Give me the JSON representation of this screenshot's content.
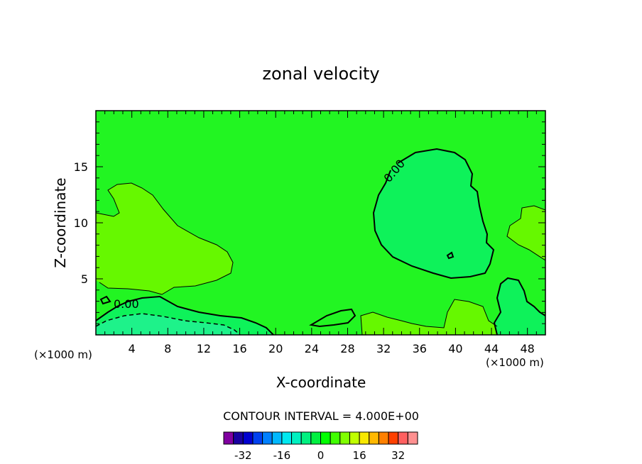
{
  "chart_data": {
    "type": "contour",
    "title": "zonal velocity",
    "xlabel": "X-coordinate",
    "ylabel": "Z-coordinate",
    "x_unit_left": "(×1000 m)",
    "x_unit_right": "(×1000 m)",
    "xlim": [
      0,
      50
    ],
    "ylim": [
      0,
      20
    ],
    "x_ticks": [
      4,
      8,
      12,
      16,
      20,
      24,
      28,
      32,
      36,
      40,
      44,
      48
    ],
    "y_ticks": [
      5,
      10,
      15
    ],
    "contour_interval_text": "CONTOUR INTERVAL = 4.000E+00",
    "contour_labels": [
      "0.00",
      "0.00"
    ],
    "colorbar": {
      "levels": [
        -36,
        -32,
        -28,
        -24,
        -20,
        -16,
        -12,
        -8,
        -4,
        0,
        4,
        8,
        12,
        16,
        20,
        24,
        28,
        32,
        36
      ],
      "colors": [
        "#8000a0",
        "#1800a0",
        "#0000d0",
        "#0040f0",
        "#0080ff",
        "#00b8ff",
        "#00e8f0",
        "#00f0c0",
        "#00f080",
        "#00f040",
        "#00ff00",
        "#40ff00",
        "#80ff00",
        "#c0ff00",
        "#f8e800",
        "#ffb800",
        "#ff8000",
        "#ff4000",
        "#ff6060",
        "#ff9090"
      ],
      "tick_labels": [
        "-32",
        "-16",
        "0",
        "16",
        "32"
      ],
      "tick_values": [
        -32,
        -16,
        0,
        16,
        32
      ]
    },
    "background_band_color": "#22f522",
    "regions": [
      {
        "band": "4 to 8",
        "color": "#66f800"
      },
      {
        "band": "-4 to 0",
        "color": "#0ef25a"
      },
      {
        "band": "-8 to -4",
        "color": "#1ef28a"
      }
    ]
  }
}
